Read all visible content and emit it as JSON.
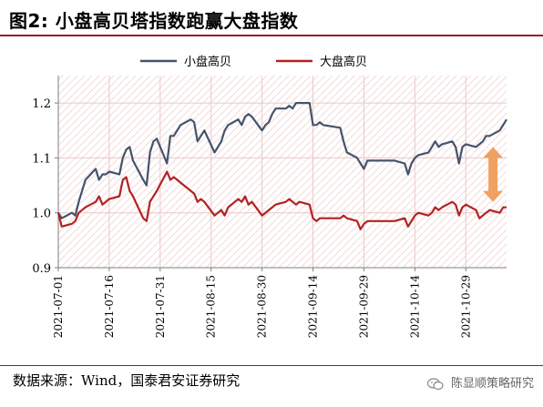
{
  "header": {
    "title": "图2: 小盘高贝塔指数跑赢大盘指数"
  },
  "footer": {
    "source": "数据来源：Wind，国泰君安证券研究",
    "watermark": "陈显顺策略研究"
  },
  "colors": {
    "small_cap": "#44546a",
    "large_cap": "#b22222",
    "arrow": "#f0a060",
    "rule": "#9e1b1b"
  },
  "chart_data": {
    "type": "line",
    "title": "",
    "xlabel": "",
    "ylabel": "",
    "ylim": [
      0.9,
      1.25
    ],
    "yticks": [
      0.9,
      1.0,
      1.1,
      1.2
    ],
    "x_tick_labels": [
      "2021-07-01",
      "2021-07-16",
      "2021-07-31",
      "2021-08-15",
      "2021-08-30",
      "2021-09-14",
      "2021-09-29",
      "2021-10-14",
      "2021-10-29"
    ],
    "legend_position": "top",
    "grid": true,
    "x_start": "2021-07-01",
    "x_end": "2021-11-10",
    "series": [
      {
        "name": "小盘高贝",
        "color": "#44546a",
        "points": [
          [
            "2021-07-01",
            1.0
          ],
          [
            "2021-07-02",
            0.99
          ],
          [
            "2021-07-05",
            1.0
          ],
          [
            "2021-07-06",
            0.995
          ],
          [
            "2021-07-07",
            1.02
          ],
          [
            "2021-07-08",
            1.04
          ],
          [
            "2021-07-09",
            1.06
          ],
          [
            "2021-07-12",
            1.08
          ],
          [
            "2021-07-13",
            1.06
          ],
          [
            "2021-07-14",
            1.07
          ],
          [
            "2021-07-15",
            1.07
          ],
          [
            "2021-07-16",
            1.075
          ],
          [
            "2021-07-19",
            1.07
          ],
          [
            "2021-07-20",
            1.1
          ],
          [
            "2021-07-21",
            1.115
          ],
          [
            "2021-07-22",
            1.12
          ],
          [
            "2021-07-23",
            1.095
          ],
          [
            "2021-07-26",
            1.06
          ],
          [
            "2021-07-27",
            1.05
          ],
          [
            "2021-07-28",
            1.11
          ],
          [
            "2021-07-29",
            1.13
          ],
          [
            "2021-07-30",
            1.135
          ],
          [
            "2021-08-02",
            1.09
          ],
          [
            "2021-08-03",
            1.14
          ],
          [
            "2021-08-04",
            1.14
          ],
          [
            "2021-08-05",
            1.15
          ],
          [
            "2021-08-06",
            1.16
          ],
          [
            "2021-08-09",
            1.17
          ],
          [
            "2021-08-10",
            1.165
          ],
          [
            "2021-08-11",
            1.13
          ],
          [
            "2021-08-12",
            1.14
          ],
          [
            "2021-08-13",
            1.15
          ],
          [
            "2021-08-16",
            1.11
          ],
          [
            "2021-08-17",
            1.12
          ],
          [
            "2021-08-18",
            1.13
          ],
          [
            "2021-08-19",
            1.15
          ],
          [
            "2021-08-20",
            1.16
          ],
          [
            "2021-08-23",
            1.17
          ],
          [
            "2021-08-24",
            1.16
          ],
          [
            "2021-08-25",
            1.175
          ],
          [
            "2021-08-26",
            1.18
          ],
          [
            "2021-08-27",
            1.175
          ],
          [
            "2021-08-30",
            1.15
          ],
          [
            "2021-08-31",
            1.16
          ],
          [
            "2021-09-01",
            1.165
          ],
          [
            "2021-09-02",
            1.18
          ],
          [
            "2021-09-03",
            1.19
          ],
          [
            "2021-09-06",
            1.19
          ],
          [
            "2021-09-07",
            1.195
          ],
          [
            "2021-09-08",
            1.19
          ],
          [
            "2021-09-09",
            1.2
          ],
          [
            "2021-09-10",
            1.2
          ],
          [
            "2021-09-13",
            1.2
          ],
          [
            "2021-09-14",
            1.16
          ],
          [
            "2021-09-15",
            1.16
          ],
          [
            "2021-09-16",
            1.165
          ],
          [
            "2021-09-17",
            1.16
          ],
          [
            "2021-09-22",
            1.155
          ],
          [
            "2021-09-23",
            1.13
          ],
          [
            "2021-09-24",
            1.11
          ],
          [
            "2021-09-27",
            1.1
          ],
          [
            "2021-09-28",
            1.09
          ],
          [
            "2021-09-29",
            1.08
          ],
          [
            "2021-09-30",
            1.095
          ],
          [
            "2021-10-08",
            1.095
          ],
          [
            "2021-10-11",
            1.09
          ],
          [
            "2021-10-12",
            1.07
          ],
          [
            "2021-10-13",
            1.09
          ],
          [
            "2021-10-14",
            1.1
          ],
          [
            "2021-10-15",
            1.105
          ],
          [
            "2021-10-18",
            1.11
          ],
          [
            "2021-10-19",
            1.12
          ],
          [
            "2021-10-20",
            1.13
          ],
          [
            "2021-10-21",
            1.12
          ],
          [
            "2021-10-22",
            1.125
          ],
          [
            "2021-10-25",
            1.13
          ],
          [
            "2021-10-26",
            1.12
          ],
          [
            "2021-10-27",
            1.09
          ],
          [
            "2021-10-28",
            1.12
          ],
          [
            "2021-10-29",
            1.125
          ],
          [
            "2021-11-01",
            1.12
          ],
          [
            "2021-11-02",
            1.125
          ],
          [
            "2021-11-03",
            1.13
          ],
          [
            "2021-11-04",
            1.14
          ],
          [
            "2021-11-05",
            1.14
          ],
          [
            "2021-11-08",
            1.15
          ],
          [
            "2021-11-09",
            1.16
          ],
          [
            "2021-11-10",
            1.17
          ]
        ]
      },
      {
        "name": "大盘高贝",
        "color": "#b22222",
        "points": [
          [
            "2021-07-01",
            1.0
          ],
          [
            "2021-07-02",
            0.975
          ],
          [
            "2021-07-05",
            0.98
          ],
          [
            "2021-07-06",
            0.985
          ],
          [
            "2021-07-07",
            1.0
          ],
          [
            "2021-07-08",
            1.005
          ],
          [
            "2021-07-09",
            1.01
          ],
          [
            "2021-07-12",
            1.02
          ],
          [
            "2021-07-13",
            1.03
          ],
          [
            "2021-07-14",
            1.015
          ],
          [
            "2021-07-15",
            1.02
          ],
          [
            "2021-07-16",
            1.025
          ],
          [
            "2021-07-19",
            1.03
          ],
          [
            "2021-07-20",
            1.06
          ],
          [
            "2021-07-21",
            1.065
          ],
          [
            "2021-07-22",
            1.04
          ],
          [
            "2021-07-23",
            1.03
          ],
          [
            "2021-07-26",
            0.99
          ],
          [
            "2021-07-27",
            0.985
          ],
          [
            "2021-07-28",
            1.02
          ],
          [
            "2021-07-29",
            1.03
          ],
          [
            "2021-07-30",
            1.04
          ],
          [
            "2021-08-02",
            1.075
          ],
          [
            "2021-08-03",
            1.06
          ],
          [
            "2021-08-04",
            1.065
          ],
          [
            "2021-08-05",
            1.06
          ],
          [
            "2021-08-06",
            1.055
          ],
          [
            "2021-08-09",
            1.04
          ],
          [
            "2021-08-10",
            1.035
          ],
          [
            "2021-08-11",
            1.02
          ],
          [
            "2021-08-12",
            1.025
          ],
          [
            "2021-08-13",
            1.02
          ],
          [
            "2021-08-16",
            0.995
          ],
          [
            "2021-08-17",
            1.0
          ],
          [
            "2021-08-18",
            1.005
          ],
          [
            "2021-08-19",
            0.995
          ],
          [
            "2021-08-20",
            1.01
          ],
          [
            "2021-08-23",
            1.025
          ],
          [
            "2021-08-24",
            1.02
          ],
          [
            "2021-08-25",
            1.03
          ],
          [
            "2021-08-26",
            1.015
          ],
          [
            "2021-08-27",
            1.02
          ],
          [
            "2021-08-30",
            0.995
          ],
          [
            "2021-08-31",
            1.0
          ],
          [
            "2021-09-01",
            1.005
          ],
          [
            "2021-09-02",
            1.01
          ],
          [
            "2021-09-03",
            1.015
          ],
          [
            "2021-09-06",
            1.02
          ],
          [
            "2021-09-07",
            1.025
          ],
          [
            "2021-09-08",
            1.02
          ],
          [
            "2021-09-09",
            1.015
          ],
          [
            "2021-09-10",
            1.02
          ],
          [
            "2021-09-13",
            1.015
          ],
          [
            "2021-09-14",
            0.99
          ],
          [
            "2021-09-15",
            0.985
          ],
          [
            "2021-09-16",
            0.99
          ],
          [
            "2021-09-17",
            0.99
          ],
          [
            "2021-09-22",
            0.99
          ],
          [
            "2021-09-23",
            0.995
          ],
          [
            "2021-09-24",
            0.99
          ],
          [
            "2021-09-27",
            0.985
          ],
          [
            "2021-09-28",
            0.97
          ],
          [
            "2021-09-29",
            0.98
          ],
          [
            "2021-09-30",
            0.985
          ],
          [
            "2021-10-08",
            0.985
          ],
          [
            "2021-10-11",
            0.99
          ],
          [
            "2021-10-12",
            0.975
          ],
          [
            "2021-10-13",
            0.985
          ],
          [
            "2021-10-14",
            0.995
          ],
          [
            "2021-10-15",
            1.0
          ],
          [
            "2021-10-18",
            0.995
          ],
          [
            "2021-10-19",
            1.0
          ],
          [
            "2021-10-20",
            1.01
          ],
          [
            "2021-10-21",
            1.005
          ],
          [
            "2021-10-22",
            1.01
          ],
          [
            "2021-10-25",
            1.02
          ],
          [
            "2021-10-26",
            1.015
          ],
          [
            "2021-10-27",
            0.995
          ],
          [
            "2021-10-28",
            1.01
          ],
          [
            "2021-10-29",
            1.015
          ],
          [
            "2021-11-01",
            1.005
          ],
          [
            "2021-11-02",
            0.99
          ],
          [
            "2021-11-03",
            0.995
          ],
          [
            "2021-11-04",
            1.0
          ],
          [
            "2021-11-05",
            1.005
          ],
          [
            "2021-11-08",
            1.0
          ],
          [
            "2021-11-09",
            1.01
          ],
          [
            "2021-11-10",
            1.01
          ]
        ]
      }
    ],
    "annotations": [
      {
        "type": "double-arrow",
        "x": "2021-11-06",
        "y_from": 1.02,
        "y_to": 1.12,
        "color": "#f0a060"
      }
    ]
  }
}
